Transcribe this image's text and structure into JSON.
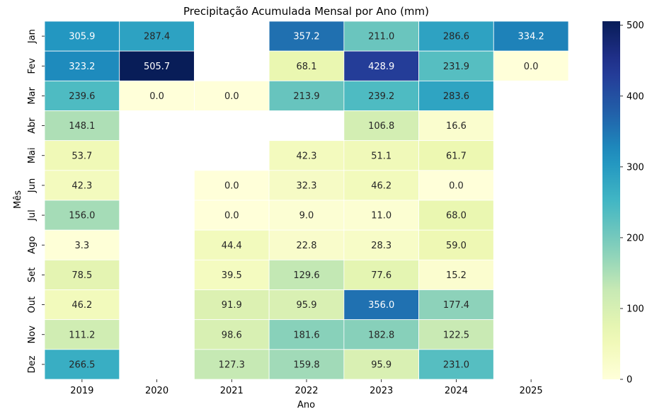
{
  "chart_data": {
    "type": "heatmap",
    "title": "Precipitação Acumulada Mensal por Ano (mm)",
    "xlabel": "Ano",
    "ylabel": "Mês",
    "x_categories": [
      "2019",
      "2020",
      "2021",
      "2022",
      "2023",
      "2024",
      "2025"
    ],
    "y_categories": [
      "Jan",
      "Fev",
      "Mar",
      "Abr",
      "Mai",
      "Jun",
      "Jul",
      "Ago",
      "Set",
      "Out",
      "Nov",
      "Dez"
    ],
    "values": [
      [
        305.9,
        287.4,
        null,
        357.2,
        211.0,
        286.6,
        334.2
      ],
      [
        323.2,
        505.7,
        null,
        68.1,
        428.9,
        231.9,
        0.0
      ],
      [
        239.6,
        0.0,
        0.0,
        213.9,
        239.2,
        283.6,
        null
      ],
      [
        148.1,
        null,
        null,
        null,
        106.8,
        16.6,
        null
      ],
      [
        53.7,
        null,
        null,
        42.3,
        51.1,
        61.7,
        null
      ],
      [
        42.3,
        null,
        0.0,
        32.3,
        46.2,
        0.0,
        null
      ],
      [
        156.0,
        null,
        0.0,
        9.0,
        11.0,
        68.0,
        null
      ],
      [
        3.3,
        null,
        44.4,
        22.8,
        28.3,
        59.0,
        null
      ],
      [
        78.5,
        null,
        39.5,
        129.6,
        77.6,
        15.2,
        null
      ],
      [
        46.2,
        null,
        91.9,
        95.9,
        356.0,
        177.4,
        null
      ],
      [
        111.2,
        null,
        98.6,
        181.6,
        182.8,
        122.5,
        null
      ],
      [
        266.5,
        null,
        127.3,
        159.8,
        95.9,
        231.0,
        null
      ]
    ],
    "colormap": "YlGnBu",
    "colorbar_range": [
      0,
      505.7
    ],
    "colorbar_ticks": [
      0,
      100,
      200,
      300,
      400,
      500
    ],
    "value_format": "0.0",
    "grid": false
  }
}
